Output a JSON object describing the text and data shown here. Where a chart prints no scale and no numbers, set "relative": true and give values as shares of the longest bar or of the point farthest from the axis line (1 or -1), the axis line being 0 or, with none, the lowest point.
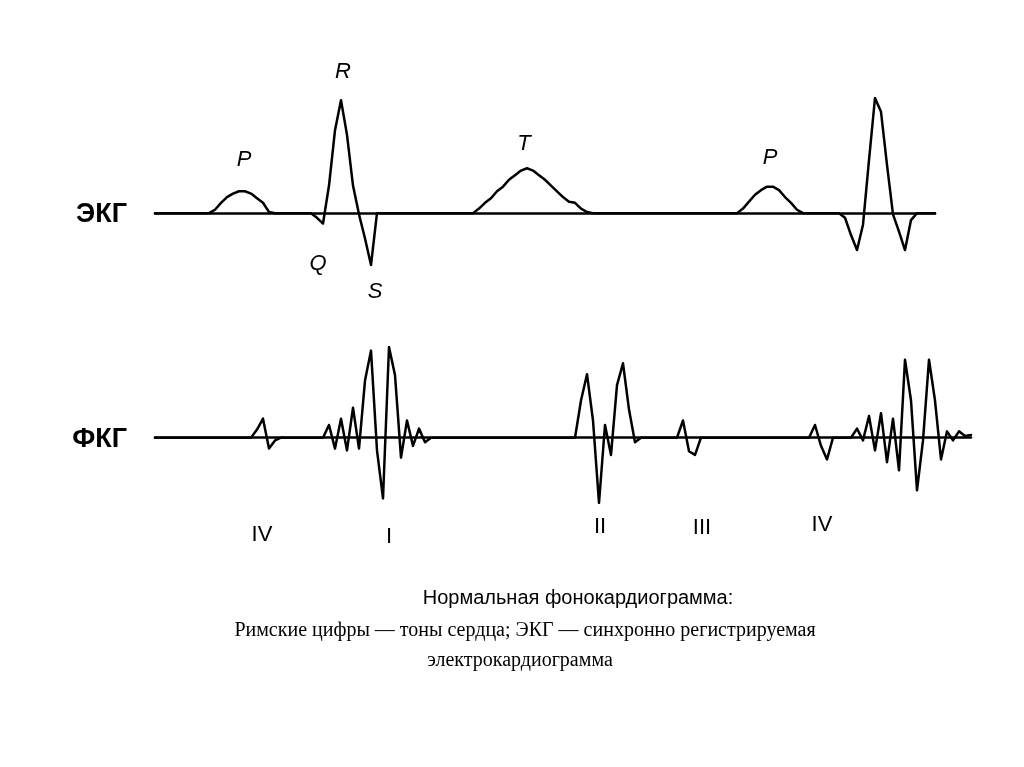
{
  "chart_data": [
    {
      "type": "line",
      "relative": true,
      "ylabel": "ЭКГ",
      "color": "#000000",
      "line_style": "solid",
      "categories": [
        null,
        null,
        null,
        null,
        null,
        null,
        null,
        null,
        null,
        null,
        null,
        null,
        null,
        null,
        null,
        null,
        null,
        null,
        null,
        null,
        null,
        null,
        null,
        null,
        null,
        null,
        null,
        null,
        null,
        null,
        null,
        null,
        null,
        null,
        null,
        null,
        null,
        null,
        null,
        null,
        null,
        null,
        null,
        null,
        null,
        null,
        null,
        null,
        null,
        null,
        null,
        null,
        null,
        null,
        null,
        null,
        null,
        null,
        null,
        null,
        null,
        null,
        null,
        null,
        null,
        null,
        null,
        null,
        null,
        null,
        null,
        null,
        null,
        null,
        null,
        null,
        null,
        null,
        null,
        null,
        null,
        null,
        null,
        null,
        null,
        null,
        null,
        null,
        null,
        null,
        null,
        null,
        null,
        null,
        null,
        null,
        null,
        null,
        null,
        null,
        null,
        null,
        null,
        null,
        null,
        null,
        null,
        null,
        null,
        null,
        null,
        null,
        null,
        null,
        null,
        null,
        null,
        null,
        null,
        null,
        null,
        null,
        null,
        null,
        null,
        null,
        null,
        null,
        null,
        null,
        null
      ],
      "values": [
        0,
        0,
        0,
        0,
        0,
        0,
        0,
        0,
        0,
        0,
        0.03,
        0.09,
        0.14,
        0.17,
        0.19,
        0.19,
        0.17,
        0.13,
        0.09,
        0.01,
        0,
        0,
        0,
        0,
        0,
        0,
        0,
        -0.04,
        -0.09,
        0.24,
        0.72,
        0.98,
        0.68,
        0.24,
        -0.01,
        -0.22,
        -0.45,
        0,
        0,
        0,
        0,
        0,
        0,
        0,
        0,
        0,
        0,
        0,
        0,
        0,
        0,
        0,
        0,
        0,
        0.04,
        0.09,
        0.13,
        0.19,
        0.23,
        0.29,
        0.33,
        0.37,
        0.39,
        0.37,
        0.33,
        0.29,
        0.24,
        0.19,
        0.14,
        0.1,
        0.09,
        0.04,
        0.01,
        0,
        0,
        0,
        0,
        0,
        0,
        0,
        0,
        0,
        0,
        0,
        0,
        0,
        0,
        0,
        0,
        0,
        0,
        0,
        0,
        0,
        0,
        0,
        0,
        0,
        0.04,
        0.1,
        0.16,
        0.2,
        0.23,
        0.23,
        0.2,
        0.14,
        0.09,
        0.03,
        0,
        0,
        0,
        0,
        0,
        0,
        0,
        -0.04,
        -0.19,
        -0.32,
        -0.1,
        0.46,
        1.0,
        0.88,
        0.42,
        -0.01,
        -0.16,
        -0.32,
        -0.06,
        0,
        0,
        0,
        0
      ],
      "annotations": [
        "P",
        "Q",
        "R",
        "S",
        "T",
        "P"
      ]
    },
    {
      "type": "line",
      "relative": true,
      "ylabel": "ФКГ",
      "color": "#000000",
      "line_style": "solid",
      "categories": [
        null,
        null,
        null,
        null,
        null,
        null,
        null,
        null,
        null,
        null,
        null,
        null,
        null,
        null,
        null,
        null,
        null,
        null,
        null,
        null,
        null,
        null,
        null,
        null,
        null,
        null,
        null,
        null,
        null,
        null,
        null,
        null,
        null,
        null,
        null,
        null,
        null,
        null,
        null,
        null,
        null,
        null,
        null,
        null,
        null,
        null,
        null,
        null,
        null,
        null,
        null,
        null,
        null,
        null,
        null,
        null,
        null,
        null,
        null,
        null,
        null,
        null,
        null,
        null,
        null,
        null,
        null,
        null,
        null,
        null,
        null,
        null,
        null,
        null,
        null,
        null,
        null,
        null,
        null,
        null,
        null,
        null,
        null,
        null,
        null,
        null,
        null,
        null,
        null,
        null,
        null,
        null,
        null,
        null,
        null,
        null,
        null,
        null,
        null,
        null,
        null,
        null,
        null,
        null,
        null,
        null,
        null,
        null,
        null,
        null,
        null,
        null,
        null,
        null,
        null,
        null,
        null,
        null,
        null,
        null,
        null,
        null,
        null,
        null,
        null,
        null,
        null,
        null,
        null,
        null,
        null,
        null,
        null,
        null,
        null,
        null,
        null
      ],
      "values": [
        0,
        0,
        0,
        0,
        0,
        0,
        0,
        0,
        0,
        0,
        0,
        0,
        0,
        0,
        0,
        0,
        0,
        0.09,
        0.21,
        -0.12,
        -0.03,
        0,
        0,
        0,
        0,
        0,
        0,
        0,
        0,
        0.14,
        -0.12,
        0.21,
        -0.14,
        0.33,
        -0.12,
        0.63,
        0.96,
        -0.14,
        -0.67,
        1.0,
        0.69,
        -0.22,
        0.19,
        -0.09,
        0.1,
        -0.05,
        0,
        0,
        0,
        0,
        0,
        0,
        0,
        0,
        0,
        0,
        0,
        0,
        0,
        0,
        0,
        0,
        0,
        0,
        0,
        0,
        0,
        0,
        0,
        0,
        0,
        0.41,
        0.7,
        0.19,
        -0.72,
        0.14,
        -0.19,
        0.58,
        0.82,
        0.31,
        -0.05,
        0,
        0,
        0,
        0,
        0,
        0,
        0,
        0.19,
        -0.15,
        -0.19,
        0,
        0,
        0,
        0,
        0,
        0,
        0,
        0,
        0,
        0,
        0,
        0,
        0,
        0,
        0,
        0,
        0,
        0,
        0,
        0.14,
        -0.09,
        -0.24,
        0,
        0,
        0,
        0,
        0.1,
        -0.03,
        0.24,
        -0.14,
        0.27,
        -0.27,
        0.21,
        -0.36,
        0.86,
        0.41,
        -0.58,
        -0.03,
        0.86,
        0.41,
        -0.24,
        0.07,
        -0.03,
        0.07,
        0.02,
        0.03
      ],
      "annotations": [
        "IV",
        "I",
        "II",
        "III",
        "IV",
        "Нормальная фонокардиограмма:",
        "Римские цифры — тоны сердца; ЭКГ — синхронно регистрируемая",
        "электрокардиограмма"
      ]
    }
  ]
}
